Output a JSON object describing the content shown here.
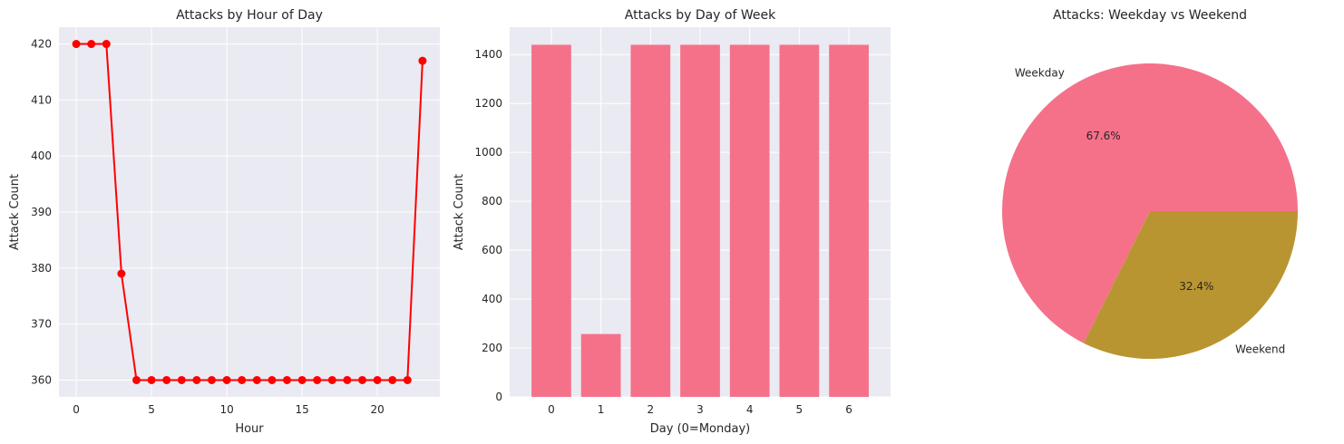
{
  "chart_data": [
    {
      "type": "line",
      "title": "Attacks by Hour of Day",
      "xlabel": "Hour",
      "ylabel": "Attack Count",
      "x": [
        0,
        1,
        2,
        3,
        4,
        5,
        6,
        7,
        8,
        9,
        10,
        11,
        12,
        13,
        14,
        15,
        16,
        17,
        18,
        19,
        20,
        21,
        22,
        23
      ],
      "values": [
        420,
        420,
        420,
        379,
        360,
        360,
        360,
        360,
        360,
        360,
        360,
        360,
        360,
        360,
        360,
        360,
        360,
        360,
        360,
        360,
        360,
        360,
        360,
        417
      ],
      "xticks": [
        0,
        5,
        10,
        15,
        20
      ],
      "yticks": [
        360,
        370,
        380,
        390,
        400,
        410,
        420
      ],
      "xlim": [
        -1.15,
        24.15
      ],
      "ylim": [
        357,
        423
      ],
      "grid": true,
      "color": "#ff0000"
    },
    {
      "type": "bar",
      "title": "Attacks by Day of Week",
      "xlabel": "Day (0=Monday)",
      "ylabel": "Attack Count",
      "categories": [
        "0",
        "1",
        "2",
        "3",
        "4",
        "5",
        "6"
      ],
      "values": [
        1440,
        257,
        1440,
        1440,
        1440,
        1440,
        1440
      ],
      "yticks": [
        0,
        200,
        400,
        600,
        800,
        1000,
        1200,
        1400
      ],
      "ylim": [
        0,
        1512
      ],
      "grid": true,
      "color": "#f5718a"
    },
    {
      "type": "pie",
      "title": "Attacks: Weekday vs Weekend",
      "labels": [
        "Weekday",
        "Weekend"
      ],
      "values": [
        67.6,
        32.4
      ],
      "value_labels": [
        "67.6%",
        "32.4%"
      ],
      "colors": [
        "#f5718a",
        "#b99532"
      ]
    }
  ]
}
